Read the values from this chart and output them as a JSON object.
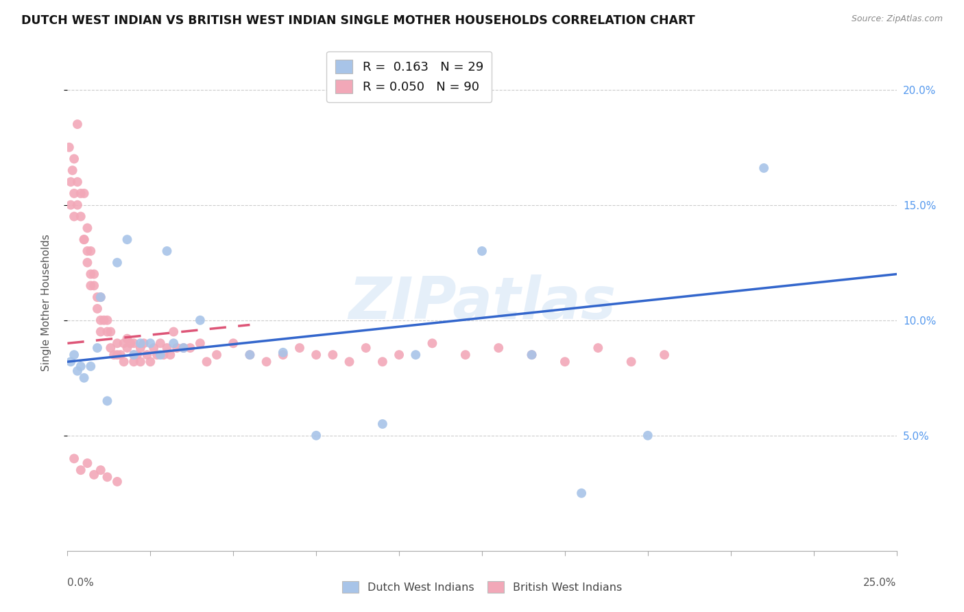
{
  "title": "DUTCH WEST INDIAN VS BRITISH WEST INDIAN SINGLE MOTHER HOUSEHOLDS CORRELATION CHART",
  "source": "Source: ZipAtlas.com",
  "ylabel": "Single Mother Households",
  "xmin": 0.0,
  "xmax": 0.25,
  "ymin": 0.0,
  "ymax": 0.215,
  "yticks": [
    0.05,
    0.1,
    0.15,
    0.2
  ],
  "ytick_labels": [
    "5.0%",
    "10.0%",
    "15.0%",
    "20.0%"
  ],
  "blue_R": "0.163",
  "blue_N": "29",
  "pink_R": "0.050",
  "pink_N": "90",
  "blue_color": "#a8c4e8",
  "pink_color": "#f2a8b8",
  "blue_line_color": "#3366cc",
  "pink_line_color": "#dd5577",
  "watermark": "ZIPatlas",
  "blue_x": [
    0.001,
    0.002,
    0.003,
    0.004,
    0.005,
    0.007,
    0.009,
    0.01,
    0.012,
    0.015,
    0.018,
    0.02,
    0.022,
    0.025,
    0.028,
    0.03,
    0.032,
    0.04,
    0.055,
    0.065,
    0.095,
    0.105,
    0.125,
    0.14,
    0.155,
    0.175,
    0.21,
    0.035,
    0.075
  ],
  "blue_y": [
    0.082,
    0.085,
    0.078,
    0.08,
    0.075,
    0.08,
    0.088,
    0.11,
    0.065,
    0.125,
    0.135,
    0.085,
    0.09,
    0.09,
    0.085,
    0.13,
    0.09,
    0.1,
    0.085,
    0.086,
    0.055,
    0.085,
    0.13,
    0.085,
    0.025,
    0.05,
    0.166,
    0.088,
    0.05
  ],
  "pink_x": [
    0.0005,
    0.001,
    0.001,
    0.0015,
    0.002,
    0.002,
    0.002,
    0.003,
    0.003,
    0.003,
    0.004,
    0.004,
    0.005,
    0.005,
    0.005,
    0.006,
    0.006,
    0.006,
    0.007,
    0.007,
    0.007,
    0.008,
    0.008,
    0.009,
    0.009,
    0.01,
    0.01,
    0.01,
    0.011,
    0.012,
    0.012,
    0.013,
    0.013,
    0.014,
    0.015,
    0.015,
    0.016,
    0.017,
    0.017,
    0.018,
    0.018,
    0.019,
    0.02,
    0.02,
    0.02,
    0.021,
    0.022,
    0.022,
    0.023,
    0.024,
    0.025,
    0.026,
    0.027,
    0.028,
    0.029,
    0.03,
    0.031,
    0.032,
    0.033,
    0.035,
    0.037,
    0.04,
    0.042,
    0.045,
    0.05,
    0.055,
    0.06,
    0.065,
    0.07,
    0.075,
    0.08,
    0.085,
    0.09,
    0.095,
    0.1,
    0.11,
    0.12,
    0.13,
    0.14,
    0.15,
    0.16,
    0.17,
    0.18,
    0.002,
    0.004,
    0.006,
    0.008,
    0.01,
    0.012,
    0.015
  ],
  "pink_y": [
    0.175,
    0.16,
    0.15,
    0.165,
    0.17,
    0.155,
    0.145,
    0.185,
    0.16,
    0.15,
    0.145,
    0.155,
    0.155,
    0.135,
    0.135,
    0.14,
    0.13,
    0.125,
    0.13,
    0.12,
    0.115,
    0.12,
    0.115,
    0.11,
    0.105,
    0.11,
    0.1,
    0.095,
    0.1,
    0.1,
    0.095,
    0.095,
    0.088,
    0.085,
    0.09,
    0.085,
    0.085,
    0.09,
    0.082,
    0.092,
    0.088,
    0.09,
    0.09,
    0.085,
    0.082,
    0.085,
    0.088,
    0.082,
    0.09,
    0.085,
    0.082,
    0.088,
    0.085,
    0.09,
    0.085,
    0.088,
    0.085,
    0.095,
    0.088,
    0.088,
    0.088,
    0.09,
    0.082,
    0.085,
    0.09,
    0.085,
    0.082,
    0.085,
    0.088,
    0.085,
    0.085,
    0.082,
    0.088,
    0.082,
    0.085,
    0.09,
    0.085,
    0.088,
    0.085,
    0.082,
    0.088,
    0.082,
    0.085,
    0.04,
    0.035,
    0.038,
    0.033,
    0.035,
    0.032,
    0.03
  ],
  "blue_line_x0": 0.0,
  "blue_line_x1": 0.25,
  "blue_line_y0": 0.082,
  "blue_line_y1": 0.12,
  "pink_line_x0": 0.0,
  "pink_line_x1": 0.055,
  "pink_line_y0": 0.09,
  "pink_line_y1": 0.098
}
